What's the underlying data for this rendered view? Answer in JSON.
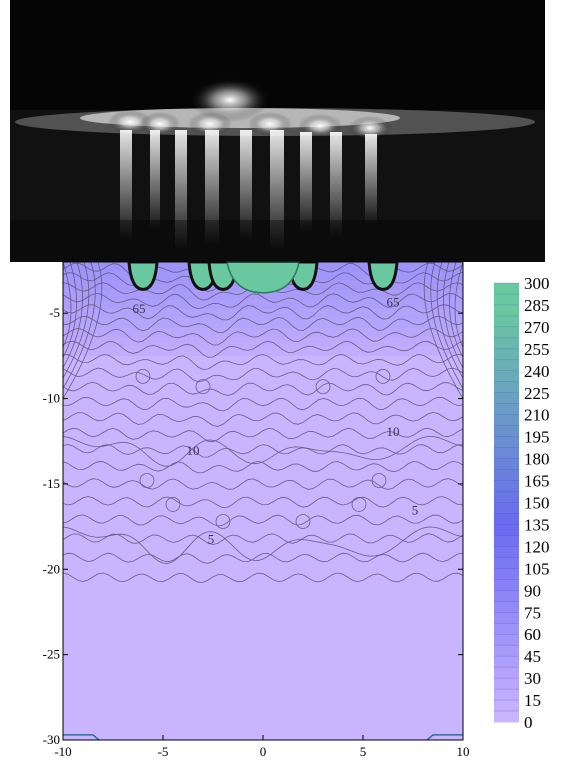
{
  "photo": {
    "description_icon": "night-photo-lights-reflection-icon"
  },
  "chart_data": {
    "type": "heatmap",
    "subtype": "contour-fill",
    "title": "",
    "xlabel": "",
    "ylabel": "",
    "xlim": [
      -10,
      10
    ],
    "ylim": [
      -30,
      -2
    ],
    "x_ticks": [
      -10,
      -5,
      0,
      5,
      10
    ],
    "y_ticks": [
      -30,
      -25,
      -20,
      -15,
      -10,
      -5
    ],
    "x_tick_labels": [
      "-10",
      "-5",
      "0",
      "5",
      "10"
    ],
    "y_tick_labels": [
      "-30",
      "-25",
      "-20",
      "-15",
      "-10",
      "-5"
    ],
    "contour_labels": [
      {
        "text": "65",
        "x": -6.2,
        "y": -5.0
      },
      {
        "text": "65",
        "x": 6.5,
        "y": -4.6
      },
      {
        "text": "10",
        "x": -3.5,
        "y": -13.3
      },
      {
        "text": "10",
        "x": 6.5,
        "y": -12.2
      },
      {
        "text": "5",
        "x": -2.6,
        "y": -18.5
      },
      {
        "text": "5",
        "x": 7.6,
        "y": -16.8
      }
    ],
    "source_centers_x": [
      -6,
      -3,
      -2,
      2,
      6
    ],
    "colorbar": {
      "min": 0,
      "max": 300,
      "ticks": [
        300,
        285,
        270,
        255,
        240,
        225,
        210,
        195,
        180,
        165,
        150,
        135,
        120,
        105,
        90,
        75,
        60,
        45,
        30,
        15,
        0
      ],
      "tick_labels": [
        "300",
        "285",
        "270",
        "255",
        "240",
        "225",
        "210",
        "195",
        "180",
        "165",
        "150",
        "135",
        "120",
        "105",
        "90",
        "75",
        "60",
        "45",
        "30",
        "15",
        "0"
      ],
      "colors": {
        "low": "#c8b4ff",
        "mid": "#6a6af0",
        "high": "#6ac8a0"
      },
      "grid": false
    },
    "legend_placement": "right"
  }
}
